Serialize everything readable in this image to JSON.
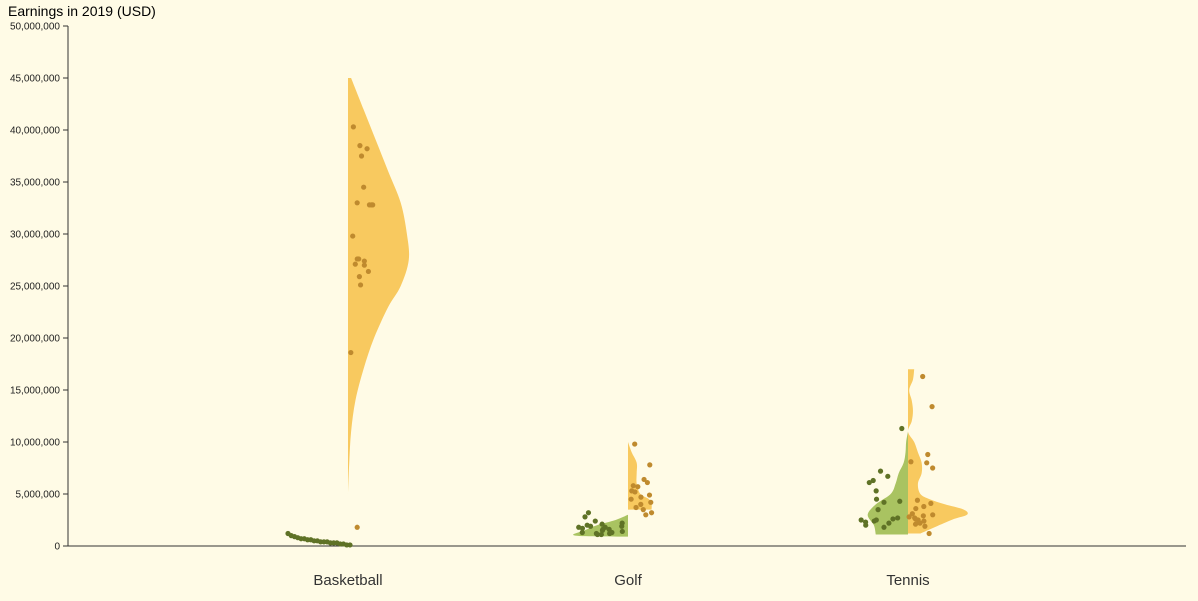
{
  "colors": {
    "background": "#fffbe6",
    "men_area": "#f8c95f",
    "men_dot": "#bf8a2e",
    "women_area": "#a9c361",
    "women_dot": "#5f7226"
  },
  "chart_data": {
    "type": "violin",
    "title": "Earnings in 2019 (USD)",
    "ylim": [
      0,
      50000000
    ],
    "y_ticks": [
      "0",
      "5,000,000",
      "10,000,000",
      "15,000,000",
      "20,000,000",
      "25,000,000",
      "30,000,000",
      "35,000,000",
      "40,000,000",
      "45,000,000",
      "50,000,000"
    ],
    "grid": false,
    "categories": [
      "Basketball",
      "Golf",
      "Tennis"
    ],
    "groups": [
      {
        "sport": "Basketball",
        "men": {
          "values": [
            40300000,
            38500000,
            38200000,
            37500000,
            34500000,
            33000000,
            32800000,
            32800000,
            32800000,
            29800000,
            27600000,
            27600000,
            27400000,
            27100000,
            27000000,
            26400000,
            25900000,
            25100000,
            18600000,
            1800000
          ],
          "density": [
            [
              5000000,
              0.0
            ],
            [
              8000000,
              0.02
            ],
            [
              11000000,
              0.05
            ],
            [
              14000000,
              0.12
            ],
            [
              17000000,
              0.25
            ],
            [
              20000000,
              0.42
            ],
            [
              23000000,
              0.65
            ],
            [
              25000000,
              0.85
            ],
            [
              27500000,
              0.98
            ],
            [
              30000000,
              0.95
            ],
            [
              33000000,
              0.85
            ],
            [
              36000000,
              0.65
            ],
            [
              39000000,
              0.45
            ],
            [
              42000000,
              0.25
            ],
            [
              45000000,
              0.05
            ]
          ]
        },
        "women": {
          "values": [
            1200000,
            1000000,
            900000,
            800000,
            700000,
            700000,
            600000,
            600000,
            500000,
            500000,
            400000,
            400000,
            400000,
            300000,
            300000,
            300000,
            200000,
            200000,
            100000,
            100000
          ],
          "density": []
        }
      },
      {
        "sport": "Golf",
        "men": {
          "values": [
            9800000,
            7800000,
            6400000,
            6100000,
            5800000,
            5700000,
            5300000,
            5200000,
            4900000,
            4700000,
            4500000,
            4200000,
            4000000,
            3700000,
            3500000,
            3200000,
            3000000
          ],
          "density": [
            [
              3500000,
              0.38
            ],
            [
              4000000,
              0.38
            ],
            [
              4500000,
              0.34
            ],
            [
              5000000,
              0.2
            ],
            [
              6000000,
              0.14
            ],
            [
              7000000,
              0.14
            ],
            [
              8000000,
              0.14
            ],
            [
              9000000,
              0.06
            ],
            [
              10000000,
              0.0
            ]
          ]
        },
        "women": {
          "values": [
            3200000,
            2800000,
            2400000,
            2200000,
            2100000,
            2000000,
            1900000,
            1900000,
            1800000,
            1800000,
            1700000,
            1600000,
            1600000,
            1500000,
            1400000,
            1300000,
            1300000,
            1200000,
            1200000,
            1100000,
            1100000
          ],
          "density": [
            [
              900000,
              0.0
            ],
            [
              1000000,
              0.85
            ],
            [
              1500000,
              0.7
            ],
            [
              2000000,
              0.5
            ],
            [
              2500000,
              0.2
            ],
            [
              3000000,
              0.0
            ]
          ]
        }
      },
      {
        "sport": "Tennis",
        "men": {
          "values": [
            16300000,
            13400000,
            8800000,
            8100000,
            8000000,
            7500000,
            4400000,
            4100000,
            3800000,
            3600000,
            3100000,
            3000000,
            2900000,
            2800000,
            2700000,
            2600000,
            2500000,
            2400000,
            2200000,
            2100000,
            1900000,
            1200000
          ],
          "density": [
            [
              1200000,
              0.2
            ],
            [
              2500000,
              0.7
            ],
            [
              3000000,
              0.95
            ],
            [
              3500000,
              0.9
            ],
            [
              4000000,
              0.6
            ],
            [
              4500000,
              0.35
            ],
            [
              5000000,
              0.2
            ],
            [
              6000000,
              0.16
            ],
            [
              7000000,
              0.22
            ],
            [
              8000000,
              0.22
            ],
            [
              9000000,
              0.16
            ],
            [
              10000000,
              0.1
            ],
            [
              11000000,
              0.0
            ],
            [
              12000000,
              0.06
            ],
            [
              13000000,
              0.08
            ],
            [
              14000000,
              0.06
            ],
            [
              15000000,
              0.02
            ],
            [
              16000000,
              0.08
            ],
            [
              17000000,
              0.1
            ]
          ]
        },
        "women": {
          "values": [
            11300000,
            7200000,
            6700000,
            6300000,
            6100000,
            5300000,
            4500000,
            4300000,
            4200000,
            3500000,
            2700000,
            2600000,
            2500000,
            2500000,
            2400000,
            2300000,
            2200000,
            2000000,
            1800000
          ],
          "density": [
            [
              1100000,
              0.52
            ],
            [
              2000000,
              0.55
            ],
            [
              3000000,
              0.65
            ],
            [
              4000000,
              0.52
            ],
            [
              5000000,
              0.28
            ],
            [
              6000000,
              0.2
            ],
            [
              7000000,
              0.15
            ],
            [
              8000000,
              0.07
            ],
            [
              9000000,
              0.04
            ],
            [
              10000000,
              0.03
            ],
            [
              11000000,
              0.0
            ]
          ]
        }
      }
    ]
  }
}
